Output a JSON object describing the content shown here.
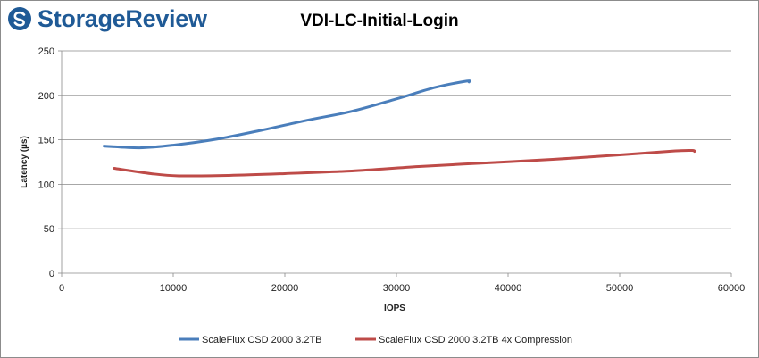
{
  "brand": {
    "name": "StorageReview"
  },
  "chart_data": {
    "type": "line",
    "title": "VDI-LC-Initial-Login",
    "xlabel": "IOPS",
    "ylabel": "Latency (µs)",
    "xlim": [
      0,
      60000
    ],
    "ylim": [
      0,
      250
    ],
    "x_ticks": [
      0,
      10000,
      20000,
      30000,
      40000,
      50000,
      60000
    ],
    "y_ticks": [
      0,
      50,
      100,
      150,
      200,
      250
    ],
    "grid": "horizontal",
    "legend_position": "bottom",
    "series": [
      {
        "name": "ScaleFlux CSD 2000 3.2TB",
        "color": "#4a7ebb",
        "points": [
          [
            3800,
            143
          ],
          [
            7000,
            141
          ],
          [
            10000,
            144
          ],
          [
            14000,
            151
          ],
          [
            18000,
            161
          ],
          [
            22000,
            172
          ],
          [
            26000,
            182
          ],
          [
            30000,
            196
          ],
          [
            33500,
            209
          ],
          [
            36300,
            216
          ],
          [
            36500,
            215
          ]
        ]
      },
      {
        "name": "ScaleFlux CSD 2000 3.2TB 4x Compression",
        "color": "#be4b48",
        "points": [
          [
            4700,
            118
          ],
          [
            8000,
            112
          ],
          [
            10500,
            109.5
          ],
          [
            15000,
            110
          ],
          [
            20000,
            112
          ],
          [
            26000,
            115
          ],
          [
            32000,
            120
          ],
          [
            38000,
            124
          ],
          [
            44000,
            128
          ],
          [
            50000,
            133
          ],
          [
            55000,
            137.5
          ],
          [
            56500,
            138
          ],
          [
            56700,
            137
          ]
        ]
      }
    ]
  }
}
